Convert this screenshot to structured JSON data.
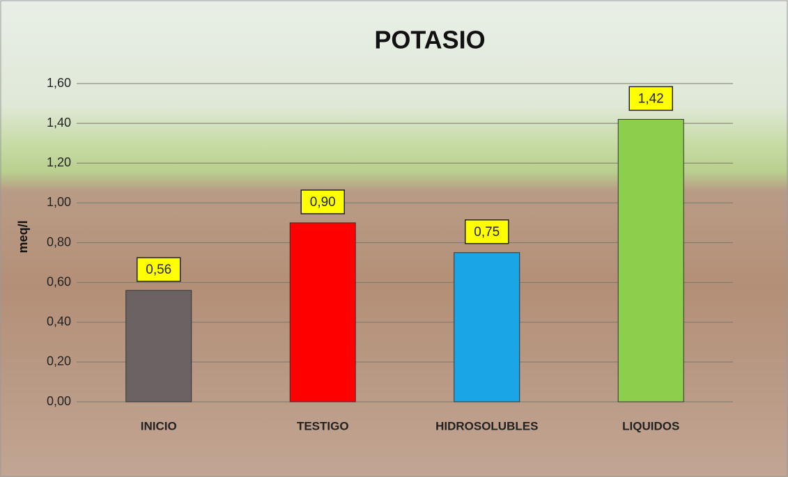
{
  "chart_data": {
    "type": "bar",
    "title": "POTASIO",
    "y_label": "meq/l",
    "categories": [
      "INICIO",
      "TESTIGO",
      "HIDROSOLUBLES",
      "LIQUIDOS"
    ],
    "values": [
      0.56,
      0.9,
      0.75,
      1.42
    ],
    "value_labels": [
      "0,56",
      "0,90",
      "0,75",
      "1,42"
    ],
    "colors": [
      "#6b6363",
      "#ff0000",
      "#1aa6e6",
      "#8ccf4d"
    ],
    "ylim": [
      0,
      1.6
    ],
    "yticks": [
      {
        "value": 0,
        "label": "0,00"
      },
      {
        "value": 0.2,
        "label": "0,20"
      },
      {
        "value": 0.4,
        "label": "0,40"
      },
      {
        "value": 0.6,
        "label": "0,60"
      },
      {
        "value": 0.8,
        "label": "0,80"
      },
      {
        "value": 1.0,
        "label": "1,00"
      },
      {
        "value": 1.2,
        "label": "1,20"
      },
      {
        "value": 1.4,
        "label": "1,40"
      },
      {
        "value": 1.6,
        "label": "1,60"
      }
    ],
    "grid": true
  }
}
